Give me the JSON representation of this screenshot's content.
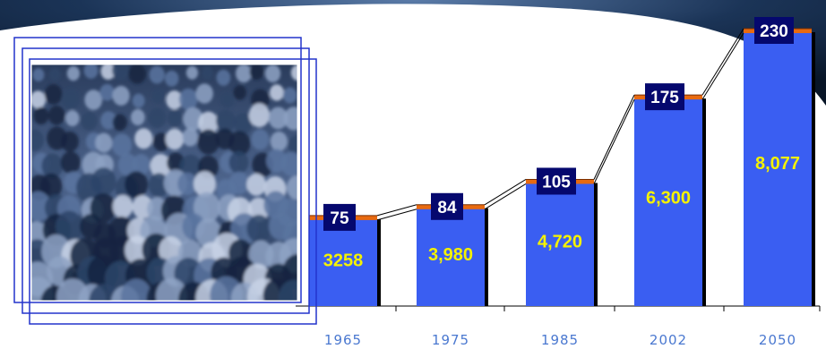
{
  "chart_data": {
    "type": "bar",
    "categories": [
      "1965",
      "1975",
      "1985",
      "2002",
      "2050"
    ],
    "values": [
      "3258",
      "3,980",
      "4,720",
      "6,300",
      "8,077"
    ],
    "top_labels": [
      "75",
      "84",
      "105",
      "175",
      "230"
    ],
    "top_values": [
      75,
      84,
      105,
      175,
      230
    ],
    "ylim": [
      0,
      230
    ],
    "xlabel": "",
    "ylabel": "",
    "grid": false
  },
  "colors": {
    "bar": "#3a5ef2",
    "bar_shadow": "#000000",
    "top_cap": "#e86a10",
    "label_box": "#05086e",
    "label_text": "#ffffff",
    "value_text": "#f5f200",
    "axis_text": "#4a78d0",
    "header_band": "#0a1f3d",
    "frame": "#2233cc",
    "photo_dark": "#14243f",
    "photo_mid": "#5a74a0",
    "photo_light": "#c8d2e6"
  },
  "photo": {
    "icon": "crowd-photo"
  }
}
